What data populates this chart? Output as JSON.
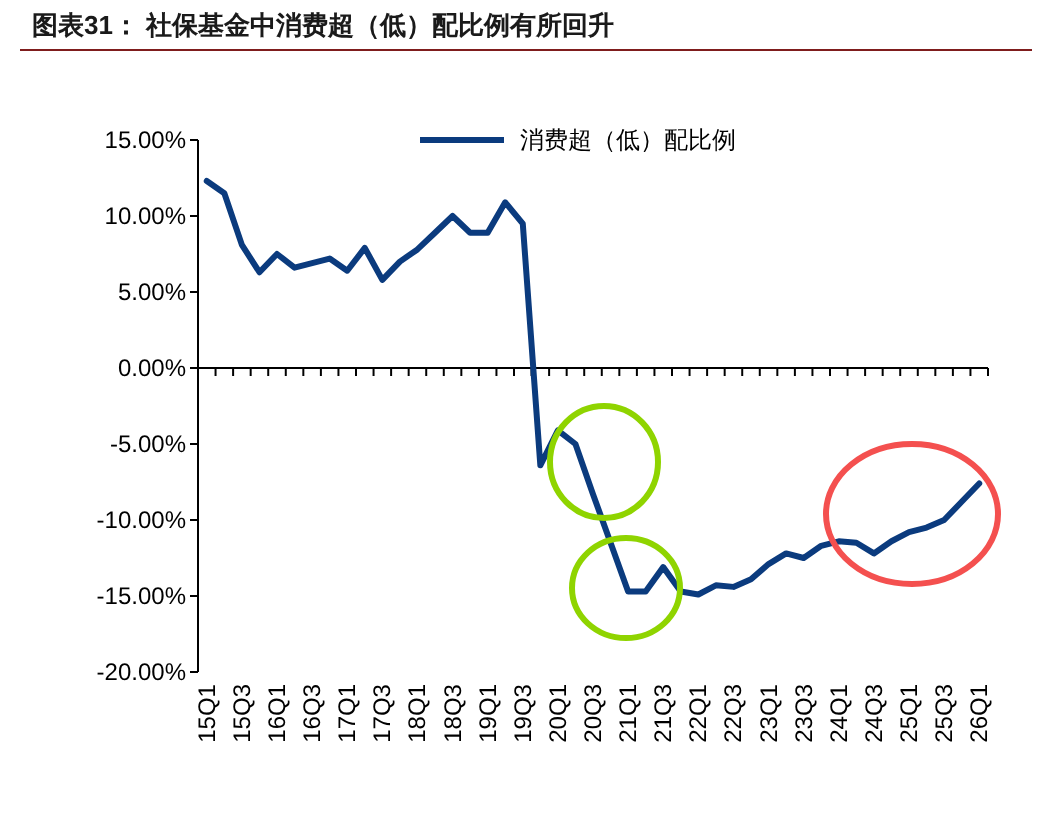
{
  "chart_data": {
    "type": "line",
    "title": "图表31： 社保基金中消费超（低）配比例有所回升",
    "categories": [
      "15Q1",
      null,
      "15Q3",
      null,
      "16Q1",
      null,
      "16Q3",
      null,
      "17Q1",
      null,
      "17Q3",
      null,
      "18Q1",
      null,
      "18Q3",
      null,
      "19Q1",
      null,
      "19Q3",
      null,
      "20Q1",
      null,
      "20Q3",
      null,
      "21Q1",
      null,
      "21Q3",
      null,
      "22Q1",
      null,
      "22Q3",
      null,
      "23Q1",
      null,
      "23Q3",
      null,
      "24Q1",
      null,
      "24Q3",
      null,
      "25Q1",
      null,
      "25Q3",
      null,
      "26Q1"
    ],
    "series": [
      {
        "name": "消费超（低）配比例",
        "color": "#0b3b7e",
        "values": [
          12.3,
          11.5,
          8.1,
          6.3,
          7.5,
          6.6,
          6.9,
          7.2,
          6.4,
          7.9,
          5.8,
          7.0,
          7.8,
          8.9,
          10.0,
          8.9,
          8.9,
          10.9,
          9.5,
          -6.4,
          -4.1,
          -5.0,
          -8.3,
          -11.5,
          -14.7,
          -14.7,
          -13.1,
          -14.7,
          -14.9,
          -14.3,
          -14.4,
          -13.9,
          -12.9,
          -12.2,
          -12.5,
          -11.7,
          -11.4,
          -11.5,
          -12.2,
          -11.4,
          -10.8,
          -10.5,
          -10.0,
          -8.8,
          -7.6
        ]
      }
    ],
    "ylim": [
      -20,
      15
    ],
    "yticks": [
      {
        "value": -20,
        "label": "-20.00%"
      },
      {
        "value": -15,
        "label": "-15.00%"
      },
      {
        "value": -10,
        "label": "-10.00%"
      },
      {
        "value": -5,
        "label": "-5.00%"
      },
      {
        "value": 0,
        "label": "0.00%"
      },
      {
        "value": 5,
        "label": "5.00%"
      },
      {
        "value": 10,
        "label": "10.00%"
      },
      {
        "value": 15,
        "label": "15.00%"
      }
    ],
    "legend": "top right",
    "marker": "none",
    "line_style": "solid"
  }
}
